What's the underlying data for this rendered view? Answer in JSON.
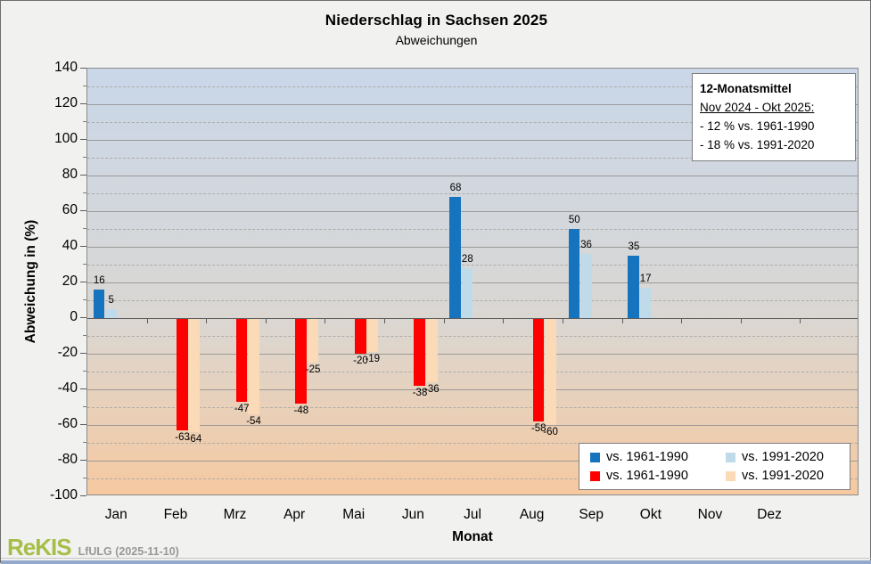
{
  "header": {
    "title": "Niederschlag in Sachsen 2025",
    "subtitle": "Abweichungen"
  },
  "chart_data": {
    "type": "bar",
    "categories": [
      "Jan",
      "Feb",
      "Mrz",
      "Apr",
      "Mai",
      "Jun",
      "Jul",
      "Aug",
      "Sep",
      "Okt",
      "Nov",
      "Dez"
    ],
    "extra_empty_slots": 1,
    "series": [
      {
        "name": "vs. 1961-1990",
        "color": "#1673BE",
        "values": [
          16,
          null,
          null,
          null,
          null,
          null,
          68,
          null,
          50,
          35,
          null,
          null
        ]
      },
      {
        "name": "vs. 1991-2020",
        "color": "#BFDBEA",
        "values": [
          5,
          null,
          null,
          null,
          null,
          null,
          28,
          null,
          36,
          17,
          null,
          null
        ]
      },
      {
        "name": "vs. 1961-1990",
        "color": "#FE0000",
        "values": [
          null,
          -63,
          -47,
          -48,
          -20,
          -38,
          null,
          -58,
          null,
          null,
          null,
          null
        ]
      },
      {
        "name": "vs. 1991-2020",
        "color": "#FBDBB7",
        "values": [
          null,
          -64,
          -54,
          -25,
          -19,
          -36,
          null,
          -60,
          null,
          null,
          null,
          null
        ]
      }
    ],
    "title": "Niederschlag in Sachsen 2025",
    "subtitle": "Abweichungen",
    "xlabel": "Monat",
    "ylabel": "Abweichung in (%)",
    "ylim": [
      -100,
      140
    ],
    "ytick_step": 20,
    "yminor_step": 10,
    "grid": "horizontal: solid major lines, dashed minor lines",
    "legend_position": "bottom-right",
    "data_labels": true,
    "plot_background": {
      "top": "#C9D7E9",
      "mid": "#DAD7D3",
      "bottom": "#F6C9A0",
      "zero_stop_pct": 58.3
    }
  },
  "info_box": {
    "title": "12-Monatsmittel",
    "period": "Nov 2024 - Okt 2025:",
    "lines": [
      "- 12  % vs. 1961-1990",
      "- 18  % vs. 1991-2020"
    ]
  },
  "footer": {
    "brand": "ReKIS",
    "brand_color": "#A6BE48",
    "source": "LfULG (2025-11-10)"
  }
}
